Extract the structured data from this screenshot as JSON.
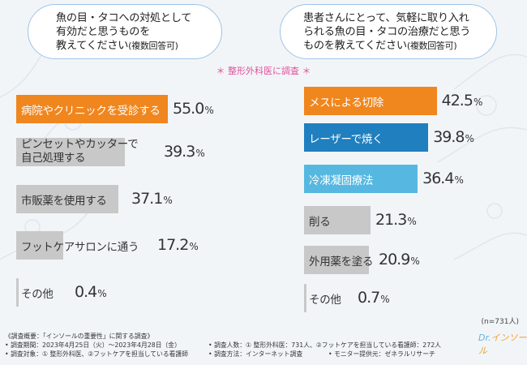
{
  "left": {
    "question": [
      "魚の目・タコへの対処として",
      "有効だと思うものを",
      "教えてください"
    ],
    "question_note": "(複数回答可)"
  },
  "right": {
    "question": [
      "患者さんにとって、気軽に取り入れ",
      "られる魚の目・タコの治療だと思う",
      "ものを教えてください"
    ],
    "question_note": "(複数回答可)"
  },
  "subtitle": "＊ 整形外科医に調査 ＊",
  "sample_note": "(n=731人)",
  "footer": {
    "title": "《調査概要：「インソールの重要性」に関する調査》",
    "period": "• 調査期間：2023年4月25日（火）～2023年4月28日（金）",
    "target": "• 調査対象：① 整形外科医、②フットケアを担当している看護師",
    "people": "• 調査人数：① 整形外科医：731人、②フットケアを担当している看護師：272人",
    "method": "• 調査方法：インターネット調査",
    "provider": "• モニター提供元：ゼネラルリサーチ"
  },
  "logo": {
    "a": "Dr.",
    "b": "インソール"
  },
  "colors": {
    "accent": "#f0861e",
    "blue": "#1f7fbf",
    "lightblue": "#56b8e0",
    "gray": "#c8c8c8"
  },
  "chart_data": [
    {
      "type": "bar",
      "orientation": "horizontal",
      "title": "魚の目・タコへの対処として有効だと思うものを教えてください(複数回答可)",
      "xlim": [
        0,
        100
      ],
      "categories": [
        "病院やクリニックを受診する",
        "ピンセットやカッターで|自己処理する",
        "市販薬を使用する",
        "フットケアサロンに通う",
        "その他"
      ],
      "values": [
        55.0,
        39.3,
        37.1,
        17.2,
        0.4
      ],
      "value_labels": [
        "55.0",
        "39.3",
        "37.1",
        "17.2",
        "0.4"
      ],
      "bar_colors": [
        "#f0861e",
        "#c8c8c8",
        "#c8c8c8",
        "#c8c8c8",
        "#c8c8c8"
      ],
      "label_colors": [
        "#ffffff",
        "#333333",
        "#333333",
        "#333333",
        "#333333"
      ],
      "unit": "%"
    },
    {
      "type": "bar",
      "orientation": "horizontal",
      "title": "患者さんにとって、気軽に取り入れられる魚の目・タコの治療だと思うものを教えてください(複数回答可)",
      "xlim": [
        0,
        100
      ],
      "categories": [
        "メスによる切除",
        "レーザーで焼く",
        "冷凍凝固療法",
        "削る",
        "外用薬を塗る",
        "その他"
      ],
      "values": [
        42.5,
        39.8,
        36.4,
        21.3,
        20.9,
        0.7
      ],
      "value_labels": [
        "42.5",
        "39.8",
        "36.4",
        "21.3",
        "20.9",
        "0.7"
      ],
      "bar_colors": [
        "#f0861e",
        "#1f7fbf",
        "#56b8e0",
        "#c8c8c8",
        "#c8c8c8",
        "#c8c8c8"
      ],
      "label_colors": [
        "#ffffff",
        "#ffffff",
        "#ffffff",
        "#333333",
        "#333333",
        "#333333"
      ],
      "unit": "%"
    }
  ]
}
